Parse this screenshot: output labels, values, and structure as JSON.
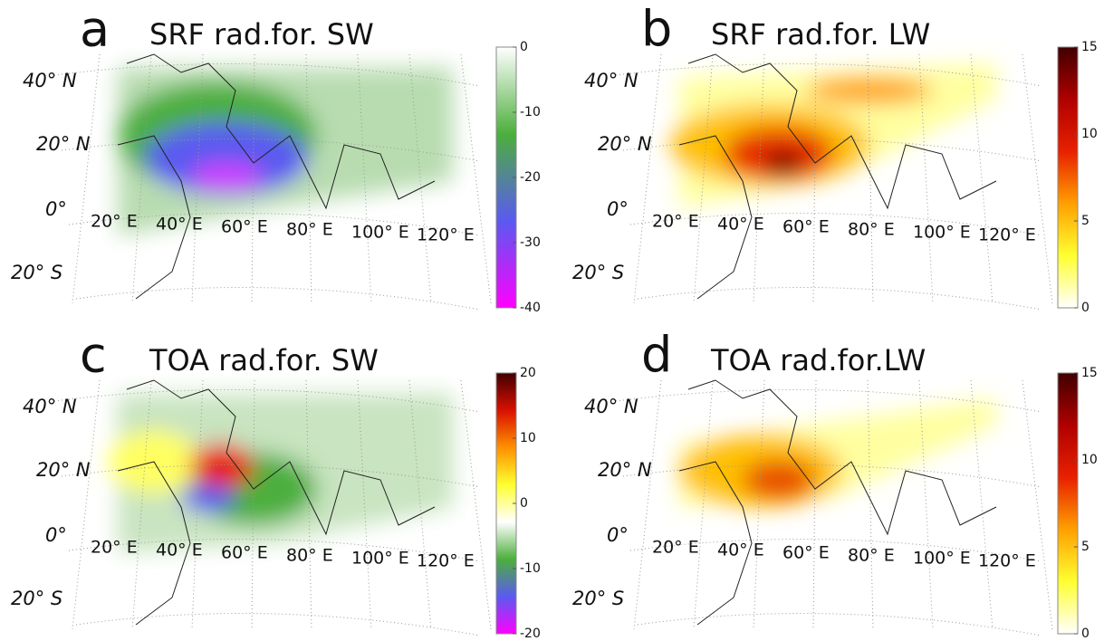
{
  "panels": [
    {
      "letter": "a",
      "title": "SRF rad.for. SW",
      "colorbar": {
        "lim": [
          -40,
          0
        ],
        "ticks": [
          0,
          -10,
          -20,
          -30,
          -40
        ],
        "colors": [
          "#ff00ff",
          "#5a5af0",
          "#4caf3c",
          "#ffffff"
        ]
      },
      "lat_labels": [
        "40° N",
        "20° N",
        "0°",
        "20° S"
      ],
      "lon_labels": [
        "20° E",
        "40° E",
        "60° E",
        "80° E",
        "100° E",
        "120° E"
      ]
    },
    {
      "letter": "b",
      "title": "SRF rad.for. LW",
      "colorbar": {
        "lim": [
          0,
          15
        ],
        "ticks": [
          15,
          10,
          5,
          0
        ],
        "colors": [
          "#ffffff",
          "#ffff30",
          "#ffa000",
          "#e82000",
          "#b00000",
          "#400000"
        ]
      },
      "lat_labels": [
        "40° N",
        "20° N",
        "0°",
        "20° S"
      ],
      "lon_labels": [
        "20° E",
        "40° E",
        "60° E",
        "80° E",
        "100° E",
        "120° E"
      ]
    },
    {
      "letter": "c",
      "title": "TOA rad.for. SW",
      "colorbar": {
        "lim": [
          -20,
          20
        ],
        "ticks": [
          20,
          10,
          0,
          -10,
          -20
        ],
        "colors": [
          "#ff00ff",
          "#5a5af0",
          "#4caf3c",
          "#ffffff",
          "#ffff30",
          "#ff9000",
          "#d81000",
          "#400000"
        ]
      },
      "lat_labels": [
        "40° N",
        "20° N",
        "0°",
        "20° S"
      ],
      "lon_labels": [
        "20° E",
        "40° E",
        "60° E",
        "80° E",
        "100° E",
        "120° E"
      ]
    },
    {
      "letter": "d",
      "title": "TOA rad.for.LW",
      "colorbar": {
        "lim": [
          0,
          15
        ],
        "ticks": [
          15,
          10,
          5,
          0
        ],
        "colors": [
          "#ffffff",
          "#ffff30",
          "#ffa000",
          "#e82000",
          "#b00000",
          "#400000"
        ]
      },
      "lat_labels": [
        "40° N",
        "20° N",
        "0°",
        "20° S"
      ],
      "lon_labels": [
        "20° E",
        "40° E",
        "60° E",
        "80° E",
        "100° E",
        "120° E"
      ]
    }
  ]
}
